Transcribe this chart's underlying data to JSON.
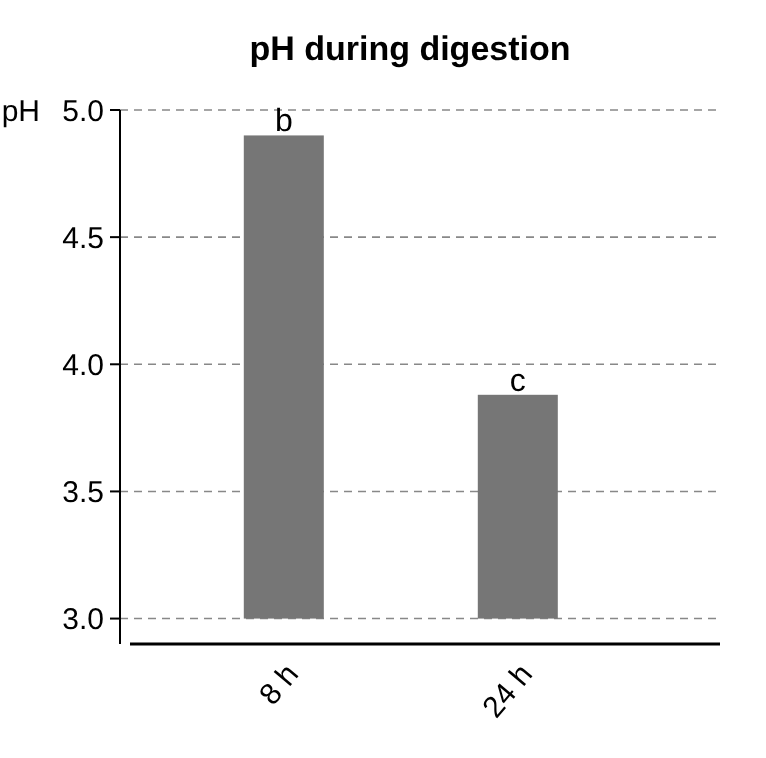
{
  "chart_data": {
    "type": "bar",
    "title": "pH during digestion",
    "ylabel": "pH",
    "categories": [
      "8 h",
      "24 h"
    ],
    "base": [
      3,
      3
    ],
    "values": [
      1.9,
      0.88
    ],
    "color": "#767676",
    "ylim": [
      2.9,
      5.0
    ],
    "yticks": [
      {
        "value": 3,
        "label": "3.0"
      },
      3.5,
      {
        "value": 4,
        "label": "4.0"
      },
      4.5,
      {
        "value": 5,
        "label": "5.0"
      }
    ],
    "grid": "y",
    "annotations": [
      {
        "text": "b",
        "x": "8 h",
        "y": 4.9
      },
      {
        "text": "c",
        "x": "24 h",
        "y": 3.88
      }
    ]
  }
}
